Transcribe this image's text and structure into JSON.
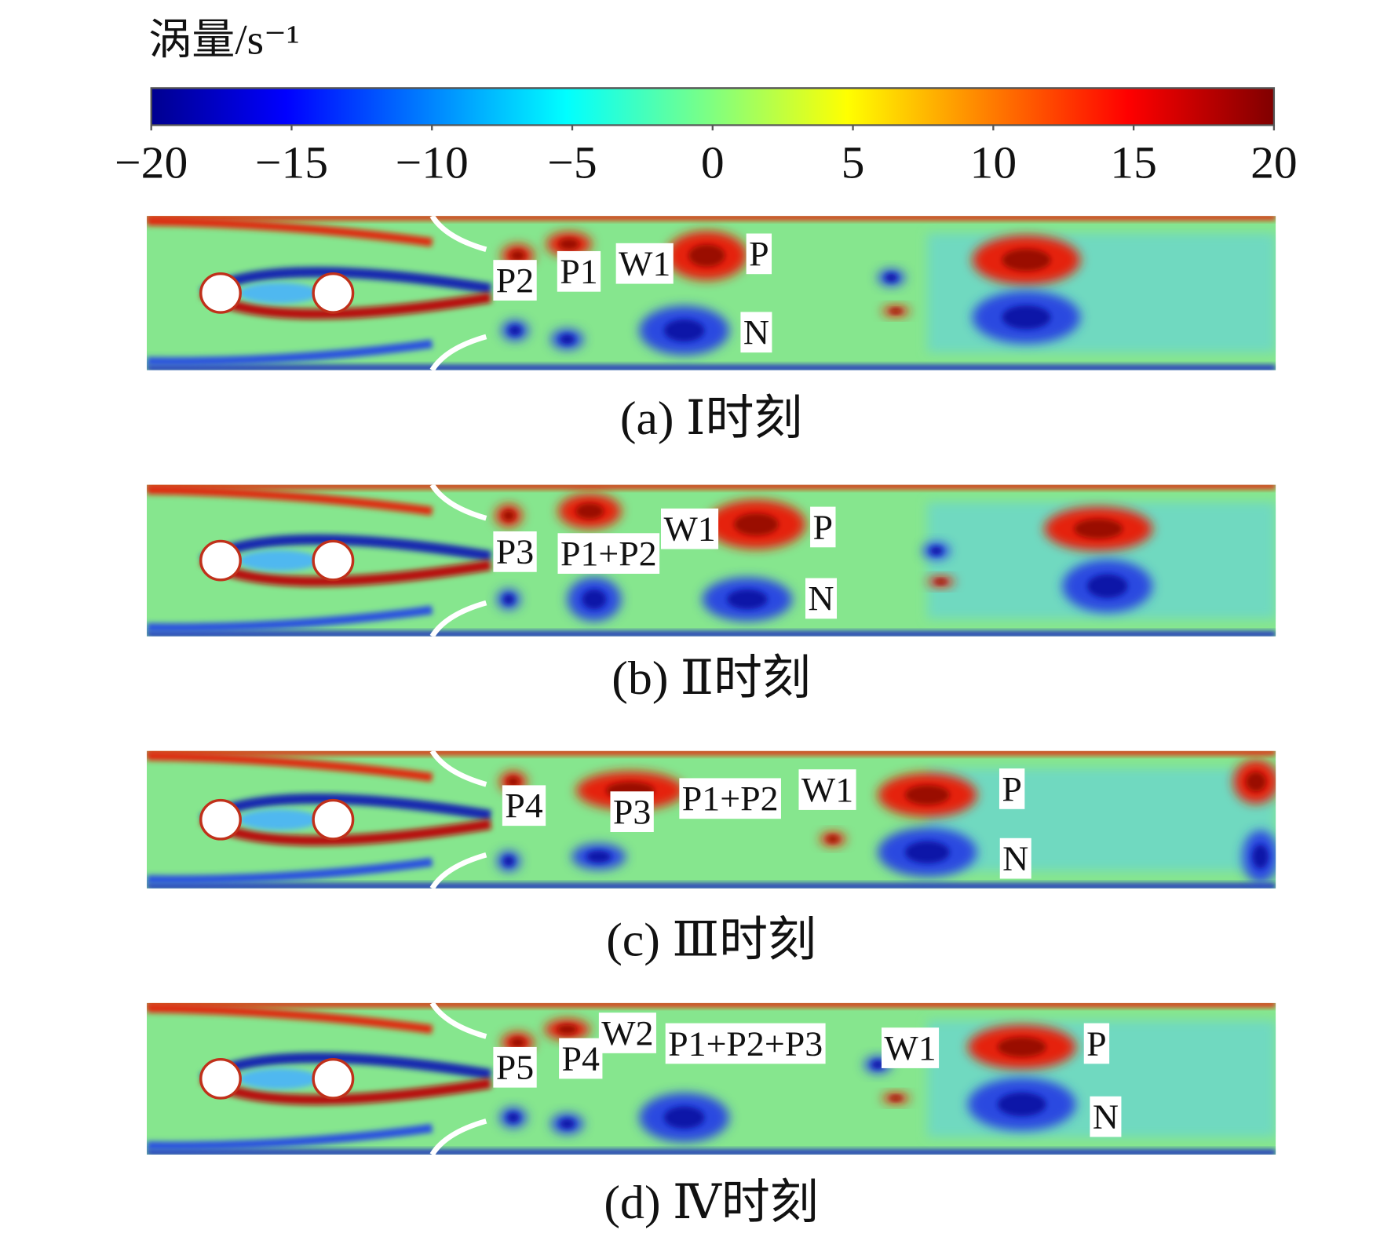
{
  "colorbar": {
    "title": "涡量/s⁻¹",
    "lim": [
      -20,
      20
    ],
    "ticks": [
      {
        "value": -20,
        "label": "−20"
      },
      {
        "value": -15,
        "label": "−15"
      },
      {
        "value": -10,
        "label": "−10"
      },
      {
        "value": -5,
        "label": "−5"
      },
      0,
      5,
      10,
      15,
      20
    ]
  },
  "panels": [
    {
      "caption": "(a) Ⅰ时刻",
      "labels": [
        "P2",
        "P1",
        "W1",
        "P",
        "N"
      ]
    },
    {
      "caption": "(b) Ⅱ时刻",
      "labels": [
        "P3",
        "P1+P2",
        "W1",
        "P",
        "N"
      ]
    },
    {
      "caption": "(c) Ⅲ时刻",
      "labels": [
        "P4",
        "P3",
        "P1+P2",
        "W1",
        "P",
        "N"
      ]
    },
    {
      "caption": "(d) Ⅳ时刻",
      "labels": [
        "P5",
        "P4",
        "W2",
        "P1+P2+P3",
        "W1",
        "P",
        "N"
      ]
    }
  ]
}
